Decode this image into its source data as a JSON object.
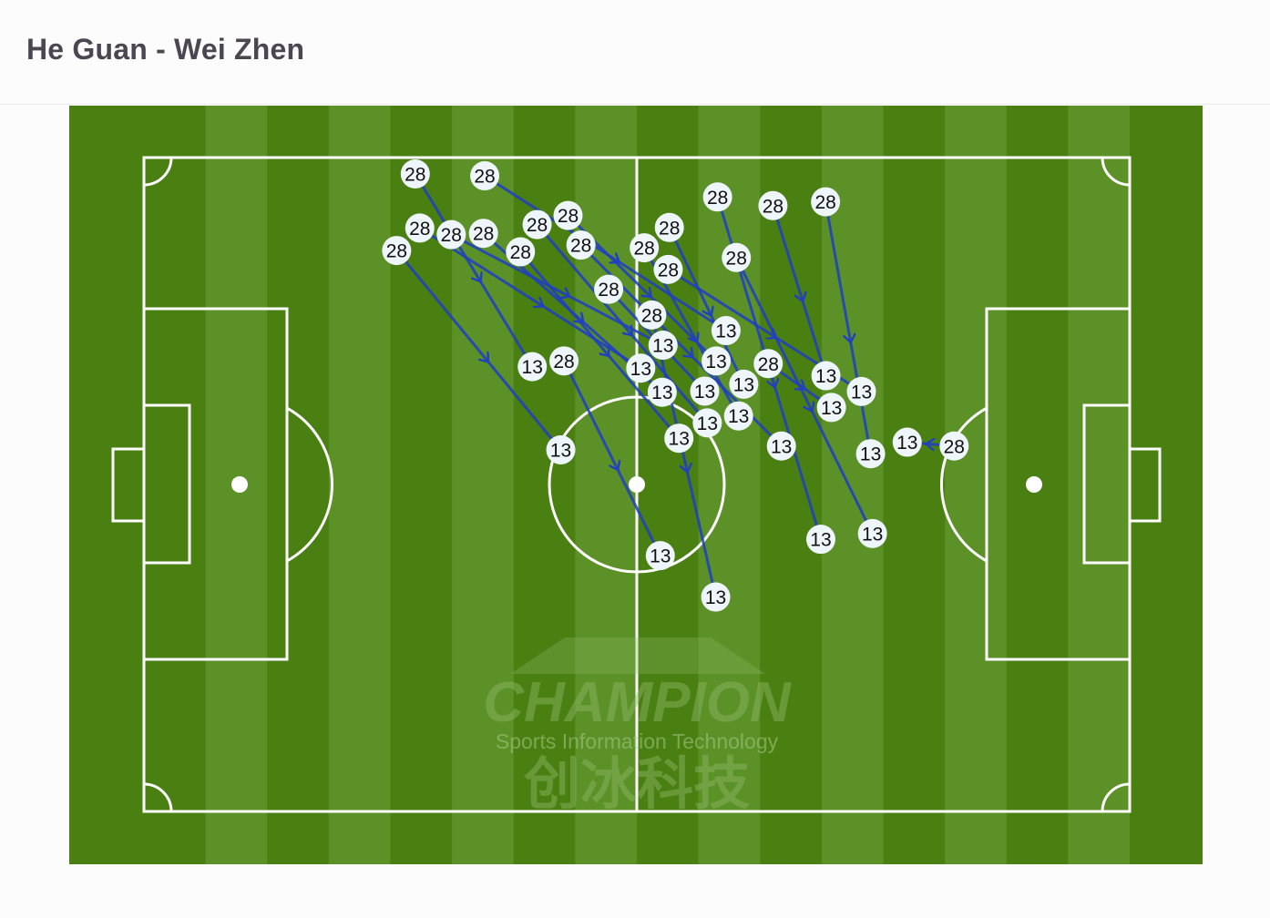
{
  "header": {
    "title": "He Guan - Wei Zhen"
  },
  "watermark": {
    "brand": "CHAMPION",
    "tagline": "Sports Information Technology",
    "chinese": "创冰科技"
  },
  "colors": {
    "pitch_dark": "#4a7f12",
    "pitch_light": "#5b9127",
    "lines": "#ffffff",
    "pass": "#1f3fc4",
    "node_fill": "#eef6fb"
  },
  "chart_data": {
    "type": "pass-map",
    "pitch_units": "meters",
    "pitch_size": [
      105,
      68
    ],
    "passer": "28",
    "receiver": "13",
    "passes": [
      {
        "from": [
          28.9,
          1.1
        ],
        "to": [
          42.2,
          21.6
        ]
      },
      {
        "from": [
          36.3,
          1.9
        ],
        "to": [
          61.9,
          18.3
        ]
      },
      {
        "from": [
          29.1,
          7.6
        ],
        "to": [
          53.3,
          21.7
        ]
      },
      {
        "from": [
          27.2,
          9.4
        ],
        "to": [
          44.4,
          30.4
        ]
      },
      {
        "from": [
          33.2,
          8.0
        ],
        "to": [
          55.0,
          19.8
        ]
      },
      {
        "from": [
          35.7,
          7.9
        ],
        "to": [
          55.1,
          24.3
        ]
      },
      {
        "from": [
          40.6,
          9.2
        ],
        "to": [
          58.4,
          28.1
        ]
      },
      {
        "from": [
          42.1,
          7.5
        ],
        "to": [
          59.8,
          26.7
        ]
      },
      {
        "from": [
          45.0,
          7.1
        ],
        "to": [
          60.7,
          22.3
        ]
      },
      {
        "from": [
          46.0,
          8.1
        ],
        "to": [
          67.9,
          30.0
        ]
      },
      {
        "from": [
          49.5,
          13.7
        ],
        "to": [
          60.4,
          24.5
        ]
      },
      {
        "from": [
          54.1,
          8.8
        ],
        "to": [
          62.3,
          26.0
        ]
      },
      {
        "from": [
          55.2,
          7.9
        ],
        "to": [
          63.9,
          24.3
        ]
      },
      {
        "from": [
          55.8,
          11.6
        ],
        "to": [
          75.9,
          24.3
        ]
      },
      {
        "from": [
          54.1,
          16.4
        ],
        "to": [
          60.9,
          45.7
        ]
      },
      {
        "from": [
          61.1,
          4.1
        ],
        "to": [
          72.1,
          39.7
        ]
      },
      {
        "from": [
          67.0,
          5.0
        ],
        "to": [
          73.2,
          23.9
        ]
      },
      {
        "from": [
          72.6,
          4.6
        ],
        "to": [
          77.4,
          30.8
        ]
      },
      {
        "from": [
          63.1,
          10.4
        ],
        "to": [
          77.6,
          39.1
        ]
      },
      {
        "from": [
          66.0,
          21.9
        ],
        "to": [
          73.2,
          24.8
        ]
      },
      {
        "from": [
          43.9,
          21.3
        ],
        "to": [
          55.0,
          41.4
        ]
      },
      {
        "from": [
          86.3,
          30.0
        ],
        "to": [
          81.3,
          29.6
        ]
      }
    ]
  }
}
